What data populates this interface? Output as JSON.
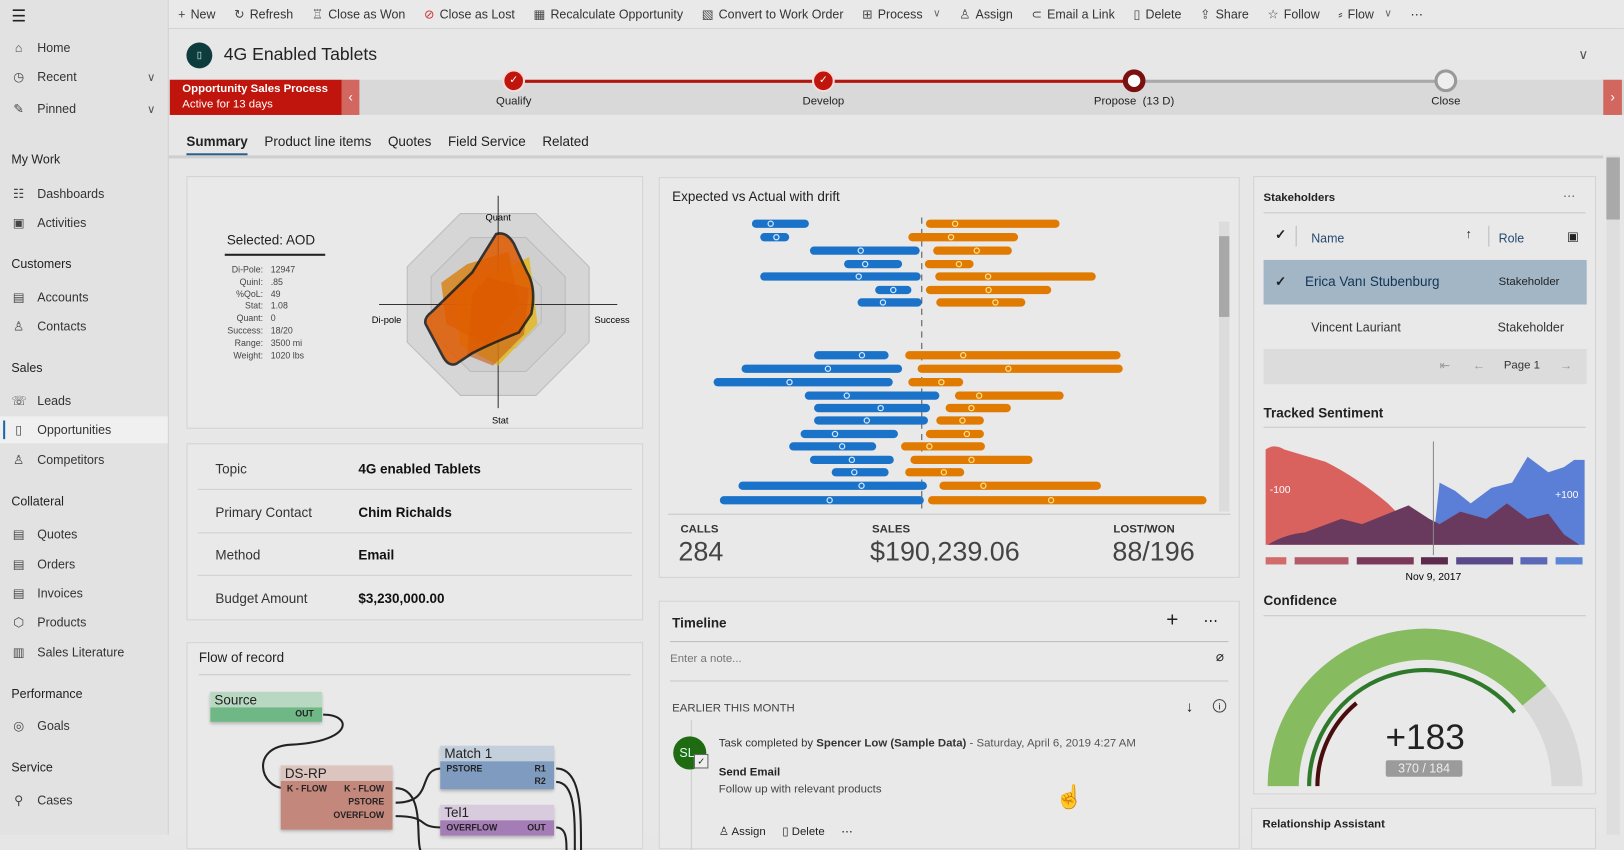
{
  "sidebar": {
    "items": [
      {
        "label": "Home",
        "icon": "home-icon"
      },
      {
        "label": "Recent",
        "icon": "clock-icon"
      },
      {
        "label": "Pinned",
        "icon": "pin-icon"
      },
      {
        "label": "Dashboards",
        "icon": "dashboard-icon"
      },
      {
        "label": "Activities",
        "icon": "activities-icon"
      },
      {
        "label": "Accounts",
        "icon": "accounts-icon"
      },
      {
        "label": "Contacts",
        "icon": "contact-icon"
      },
      {
        "label": "Leads",
        "icon": "leads-icon"
      },
      {
        "label": "Opportunities",
        "icon": "opportunity-icon"
      },
      {
        "label": "Competitors",
        "icon": "competitor-icon"
      },
      {
        "label": "Quotes",
        "icon": "quote-icon"
      },
      {
        "label": "Orders",
        "icon": "order-icon"
      },
      {
        "label": "Invoices",
        "icon": "invoice-icon"
      },
      {
        "label": "Products",
        "icon": "product-icon"
      },
      {
        "label": "Sales Literature",
        "icon": "literature-icon"
      },
      {
        "label": "Goals",
        "icon": "goal-icon"
      },
      {
        "label": "Cases",
        "icon": "cases-icon"
      }
    ],
    "groups": [
      "My Work",
      "Customers",
      "Sales",
      "Collateral",
      "Performance",
      "Service"
    ]
  },
  "toolbar": [
    "New",
    "Refresh",
    "Close as Won",
    "Close as Lost",
    "Recalculate Opportunity",
    "Convert to Work Order",
    "Process",
    "Assign",
    "Email a Link",
    "Delete",
    "Share",
    "Follow",
    "Flow"
  ],
  "record": {
    "title": "4G Enabled Tablets"
  },
  "process": {
    "name": "Opportunity Sales Process",
    "active": "Active for 13 days",
    "stages": [
      "Qualify",
      "Develop",
      "Propose  (13 D)",
      "Close"
    ],
    "color": "#c0150d"
  },
  "tabs": [
    "Summary",
    "Product line items",
    "Quotes",
    "Field Service",
    "Related"
  ],
  "radar": {
    "selected": "Selected: AOD",
    "stats": [
      [
        "Di-Pole:",
        "12947"
      ],
      [
        "QuinI:",
        ".85"
      ],
      [
        "%QoL:",
        "49"
      ],
      [
        "Stat:",
        "1.08"
      ],
      [
        "Quant:",
        "0"
      ],
      [
        "Success:",
        "18/20"
      ],
      [
        "Range:",
        "3500 mi"
      ],
      [
        "Weight:",
        "1020 lbs"
      ]
    ],
    "axes": [
      "Quant",
      "Success",
      "Stat",
      "Di-pole"
    ]
  },
  "fields": [
    [
      "Topic",
      "4G enabled Tablets"
    ],
    [
      "Primary Contact",
      "Chim Richalds"
    ],
    [
      "Method",
      "Email"
    ],
    [
      "Budget Amount",
      "$3,230,000.00"
    ]
  ],
  "drift": {
    "title": "Expected vs Actual with drift",
    "calls_label": "CALLS",
    "calls": "284",
    "sales_label": "SALES",
    "sales": "$190,239.06",
    "lostwon_label": "LOST/WON",
    "lostwon": "88/196",
    "colors": {
      "expected": "#1a73c8",
      "actual": "#e07a00"
    }
  },
  "flow": {
    "title": "Flow of record",
    "nodes": {
      "source": "Source",
      "dsrp": "DS-RP",
      "match": "Match 1",
      "tel": "Tel1"
    },
    "ports": {
      "out": "OUT",
      "kflow": "K - FLOW",
      "pstore": "PSTORE",
      "overflow": "OVERFLOW",
      "r1": "R1",
      "r2": "R2"
    }
  },
  "timeline": {
    "title": "Timeline",
    "placeholder": "Enter a note...",
    "group": "EARLIER THIS MONTH",
    "avatar": "SL",
    "prefix": "Task completed by",
    "user": "Spencer Low (Sample Data)",
    "date": "- Saturday, April 6, 2019 4:27 AM",
    "subject": "Send Email",
    "desc": "Follow up with relevant products",
    "assign": "Assign",
    "delete": "Delete"
  },
  "stakeholders": {
    "title": "Stakeholders",
    "col_name": "Name",
    "col_role": "Role",
    "rows": [
      [
        "Erica Vanı Stubenburg",
        "Stakeholder"
      ],
      [
        "Vincent Lauriant",
        "Stakeholder"
      ]
    ],
    "page": "Page 1"
  },
  "sentiment": {
    "title": "Tracked Sentiment",
    "neg": "-100",
    "pos": "+100",
    "date": "Nov 9, 2017"
  },
  "confidence": {
    "title": "Confidence",
    "value": "+183",
    "sub": "370 / 184",
    "fill_fraction": 0.78
  },
  "relationship": {
    "title": "Relationship Assistant"
  }
}
